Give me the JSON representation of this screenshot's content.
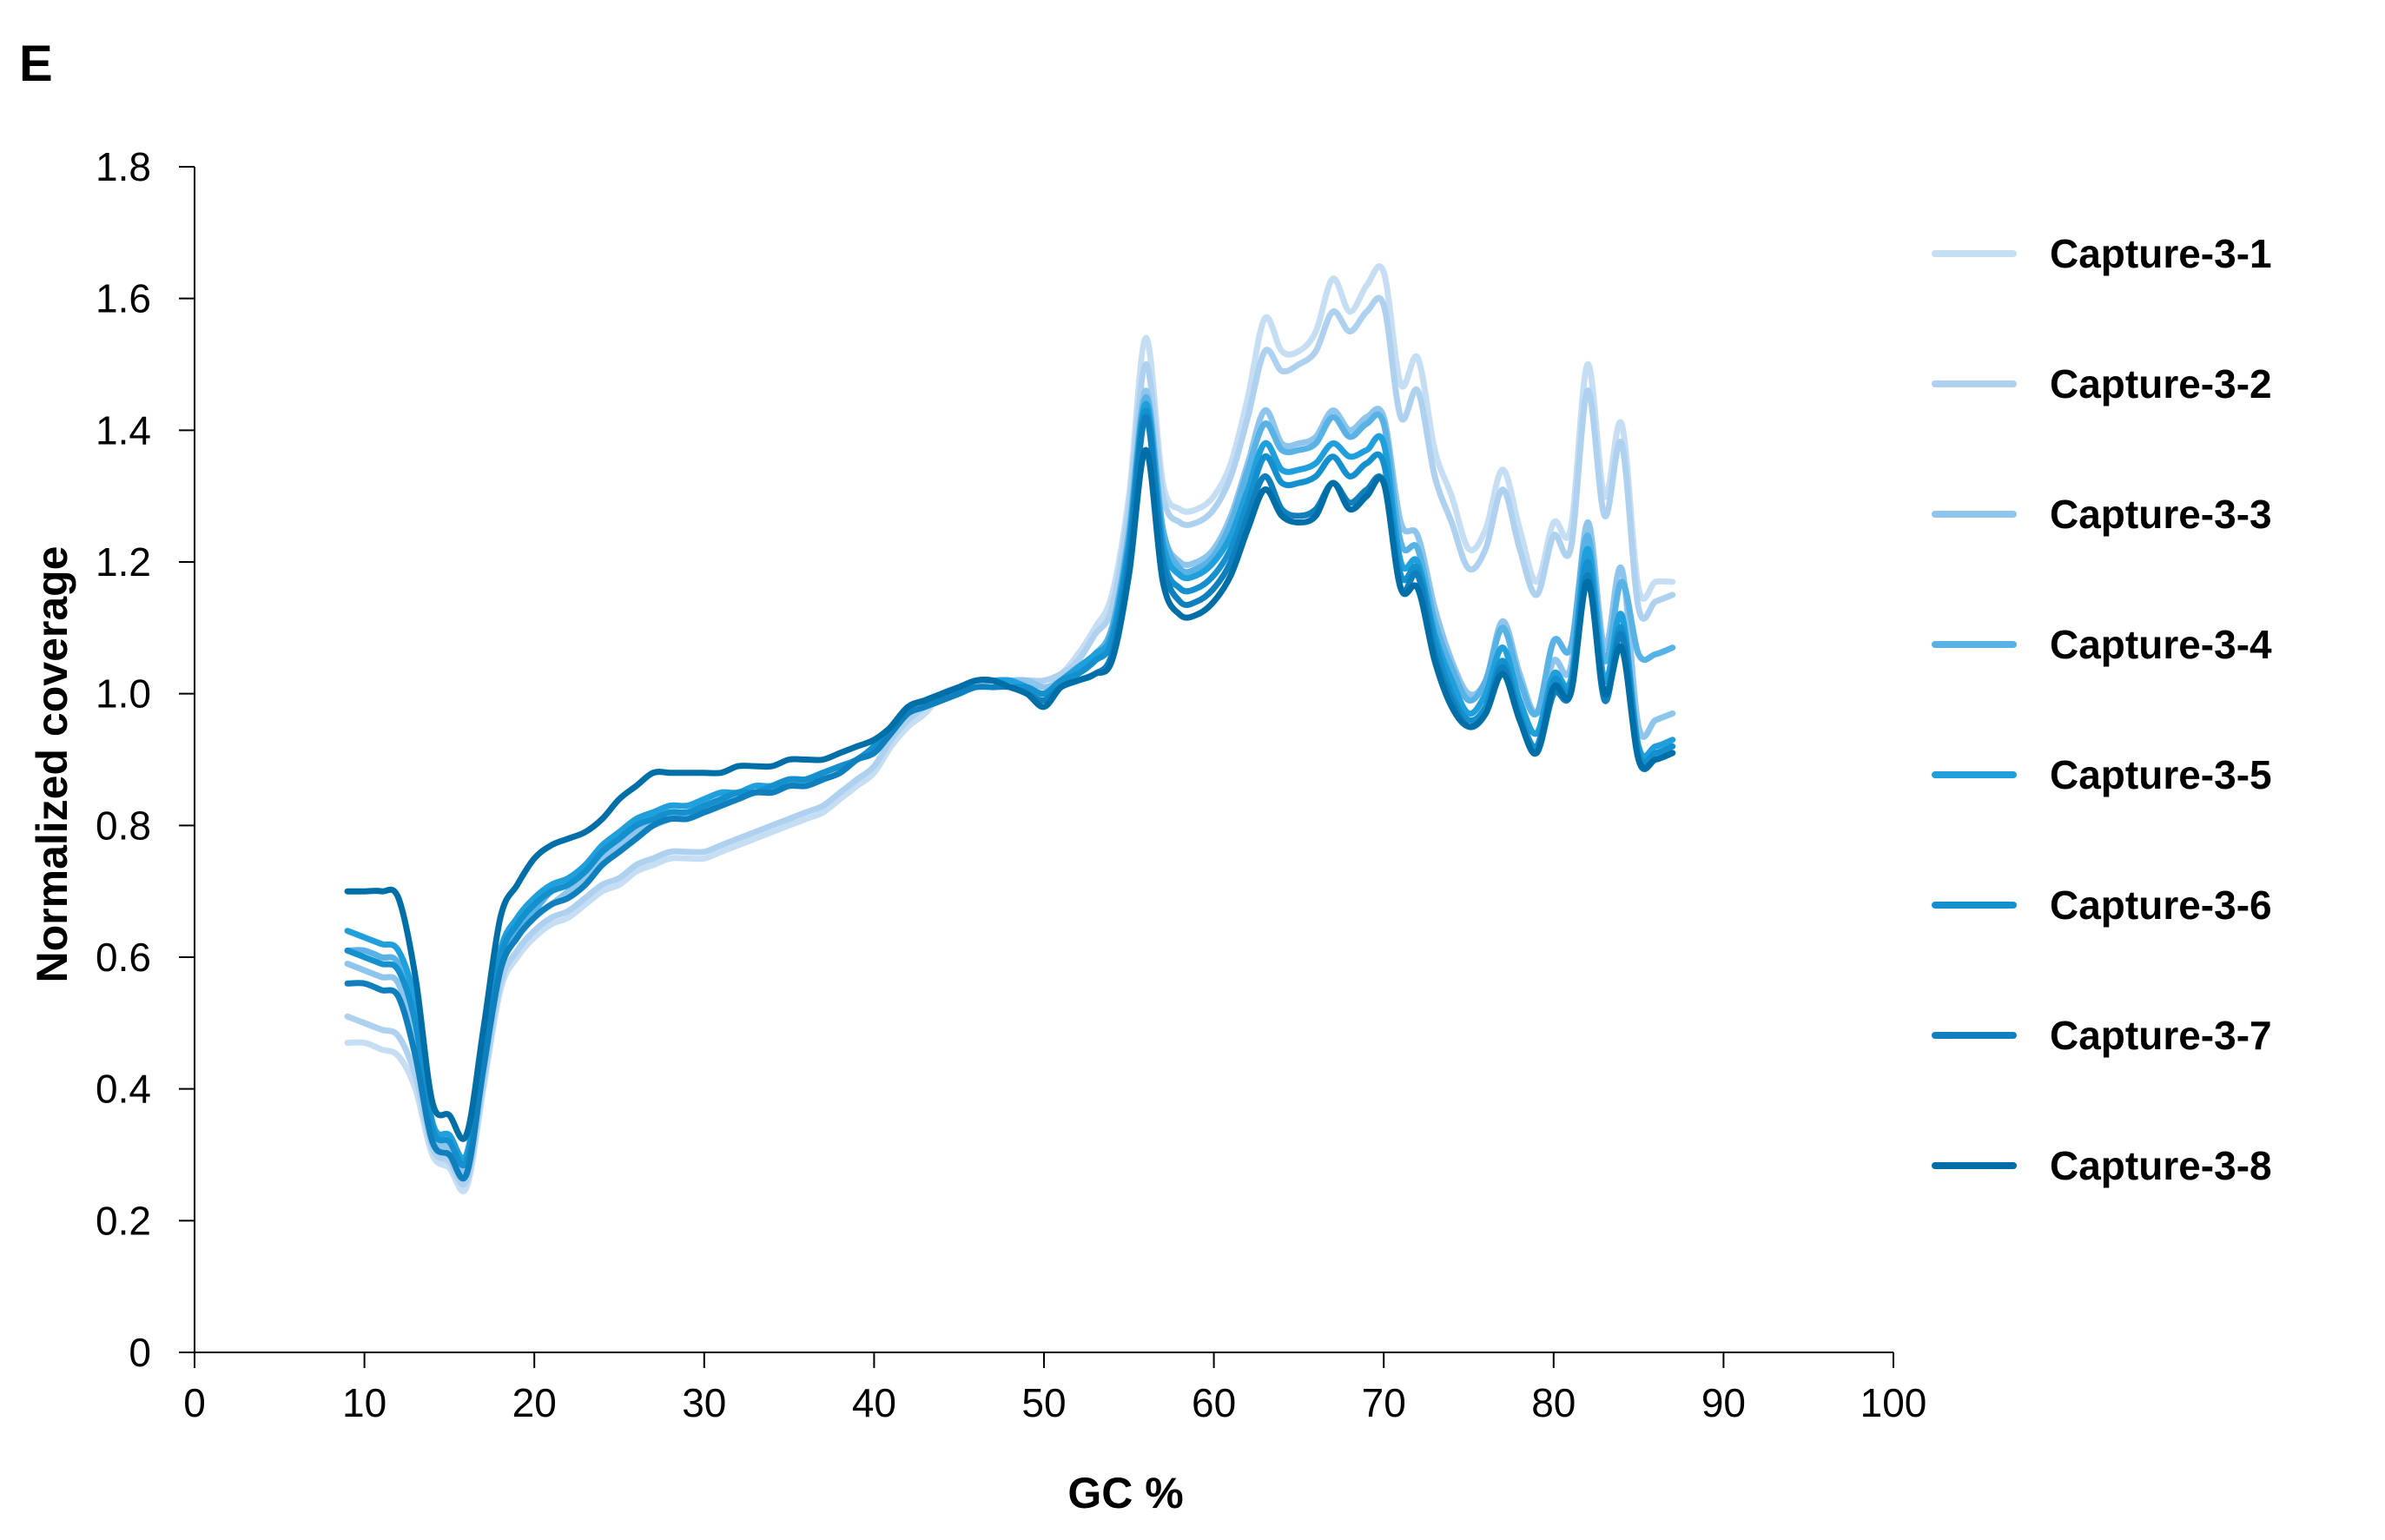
{
  "panel_label": "E",
  "chart_data": {
    "type": "line",
    "xlabel": "GC %",
    "ylabel": "Normalized coverage",
    "xlim": [
      0,
      100
    ],
    "ylim": [
      0,
      1.8
    ],
    "xticks": [
      0,
      10,
      20,
      30,
      40,
      50,
      60,
      70,
      80,
      90,
      100
    ],
    "yticks": [
      0,
      0.2,
      0.4,
      0.6,
      0.8,
      1.0,
      1.2,
      1.4,
      1.6,
      1.8
    ],
    "ytick_labels": [
      "0",
      "0.2",
      "0.4",
      "0.6",
      "0.8",
      "1.0",
      "1.2",
      "1.4",
      "1.6",
      "1.8"
    ],
    "legend_position": "right",
    "x": [
      9,
      10,
      11,
      12,
      13,
      14,
      15,
      16,
      17,
      18,
      19,
      20,
      21,
      22,
      23,
      24,
      25,
      26,
      27,
      28,
      29,
      30,
      31,
      32,
      33,
      34,
      35,
      36,
      37,
      38,
      39,
      40,
      41,
      42,
      43,
      44,
      45,
      46,
      47,
      48,
      49,
      50,
      51,
      52,
      53,
      54,
      55,
      56,
      57,
      58,
      59,
      60,
      61,
      62,
      63,
      64,
      65,
      66,
      67,
      68,
      69,
      70,
      71,
      72,
      73,
      74,
      75,
      76,
      77,
      78,
      79,
      80,
      81,
      82,
      83,
      84,
      85,
      86,
      87
    ],
    "series": [
      {
        "name": "Capture-3-1",
        "color": "#c6def4",
        "values": [
          0.47,
          0.47,
          0.46,
          0.45,
          0.4,
          0.3,
          0.28,
          0.25,
          0.4,
          0.55,
          0.6,
          0.63,
          0.65,
          0.66,
          0.68,
          0.7,
          0.71,
          0.73,
          0.74,
          0.75,
          0.75,
          0.75,
          0.76,
          0.77,
          0.78,
          0.79,
          0.8,
          0.81,
          0.82,
          0.84,
          0.86,
          0.88,
          0.92,
          0.95,
          0.97,
          1.0,
          1.01,
          1.02,
          1.02,
          1.02,
          1.02,
          1.02,
          1.03,
          1.06,
          1.1,
          1.15,
          1.3,
          1.54,
          1.32,
          1.28,
          1.28,
          1.3,
          1.35,
          1.45,
          1.57,
          1.52,
          1.52,
          1.55,
          1.63,
          1.58,
          1.62,
          1.64,
          1.47,
          1.51,
          1.37,
          1.3,
          1.22,
          1.25,
          1.34,
          1.25,
          1.17,
          1.26,
          1.25,
          1.5,
          1.3,
          1.41,
          1.16,
          1.17,
          1.17
        ]
      },
      {
        "name": "Capture-3-2",
        "color": "#aed1ef",
        "values": [
          0.51,
          0.5,
          0.49,
          0.48,
          0.42,
          0.31,
          0.29,
          0.26,
          0.41,
          0.56,
          0.61,
          0.64,
          0.66,
          0.67,
          0.69,
          0.71,
          0.72,
          0.74,
          0.75,
          0.76,
          0.76,
          0.76,
          0.77,
          0.78,
          0.79,
          0.8,
          0.81,
          0.82,
          0.83,
          0.85,
          0.87,
          0.89,
          0.93,
          0.96,
          0.98,
          1.0,
          1.01,
          1.02,
          1.02,
          1.02,
          1.02,
          1.02,
          1.03,
          1.05,
          1.09,
          1.13,
          1.28,
          1.5,
          1.3,
          1.26,
          1.26,
          1.28,
          1.33,
          1.42,
          1.52,
          1.49,
          1.5,
          1.52,
          1.58,
          1.55,
          1.58,
          1.59,
          1.42,
          1.46,
          1.33,
          1.26,
          1.19,
          1.22,
          1.31,
          1.22,
          1.15,
          1.24,
          1.22,
          1.46,
          1.27,
          1.38,
          1.13,
          1.14,
          1.15
        ]
      },
      {
        "name": "Capture-3-3",
        "color": "#8ec5ec",
        "values": [
          0.59,
          0.58,
          0.57,
          0.56,
          0.47,
          0.33,
          0.31,
          0.28,
          0.43,
          0.58,
          0.63,
          0.66,
          0.68,
          0.7,
          0.72,
          0.75,
          0.77,
          0.79,
          0.8,
          0.81,
          0.82,
          0.82,
          0.83,
          0.84,
          0.85,
          0.85,
          0.86,
          0.86,
          0.87,
          0.88,
          0.9,
          0.92,
          0.95,
          0.98,
          0.99,
          1.0,
          1.01,
          1.02,
          1.02,
          1.02,
          1.02,
          1.01,
          1.02,
          1.04,
          1.06,
          1.1,
          1.25,
          1.46,
          1.25,
          1.2,
          1.2,
          1.22,
          1.27,
          1.35,
          1.43,
          1.38,
          1.38,
          1.39,
          1.43,
          1.4,
          1.42,
          1.42,
          1.26,
          1.24,
          1.13,
          1.05,
          1.0,
          1.02,
          1.11,
          1.03,
          0.97,
          1.05,
          1.04,
          1.26,
          1.07,
          1.19,
          0.95,
          0.96,
          0.97
        ]
      },
      {
        "name": "Capture-3-4",
        "color": "#58b2e6",
        "values": [
          0.61,
          0.61,
          0.6,
          0.59,
          0.5,
          0.34,
          0.32,
          0.29,
          0.44,
          0.59,
          0.64,
          0.67,
          0.7,
          0.71,
          0.73,
          0.76,
          0.78,
          0.8,
          0.81,
          0.82,
          0.82,
          0.83,
          0.84,
          0.85,
          0.85,
          0.86,
          0.86,
          0.87,
          0.88,
          0.89,
          0.9,
          0.92,
          0.95,
          0.98,
          0.99,
          1.0,
          1.01,
          1.02,
          1.02,
          1.02,
          1.01,
          1.0,
          1.02,
          1.04,
          1.06,
          1.1,
          1.24,
          1.45,
          1.25,
          1.19,
          1.19,
          1.21,
          1.26,
          1.34,
          1.41,
          1.37,
          1.37,
          1.38,
          1.42,
          1.39,
          1.41,
          1.41,
          1.23,
          1.22,
          1.11,
          1.04,
          0.99,
          1.02,
          1.1,
          1.02,
          0.97,
          1.08,
          1.07,
          1.24,
          1.05,
          1.17,
          1.06,
          1.06,
          1.07
        ]
      },
      {
        "name": "Capture-3-5",
        "color": "#1f9fdc",
        "values": [
          0.64,
          0.63,
          0.62,
          0.61,
          0.53,
          0.35,
          0.33,
          0.3,
          0.46,
          0.61,
          0.66,
          0.69,
          0.71,
          0.72,
          0.74,
          0.77,
          0.79,
          0.81,
          0.82,
          0.83,
          0.83,
          0.84,
          0.85,
          0.85,
          0.86,
          0.86,
          0.87,
          0.87,
          0.88,
          0.89,
          0.9,
          0.92,
          0.95,
          0.98,
          0.99,
          1.0,
          1.01,
          1.02,
          1.02,
          1.02,
          1.01,
          1.0,
          1.02,
          1.04,
          1.06,
          1.09,
          1.23,
          1.44,
          1.23,
          1.18,
          1.18,
          1.2,
          1.24,
          1.31,
          1.38,
          1.34,
          1.34,
          1.35,
          1.38,
          1.36,
          1.37,
          1.38,
          1.2,
          1.2,
          1.09,
          1.02,
          0.97,
          1.0,
          1.07,
          0.99,
          0.94,
          1.03,
          1.02,
          1.22,
          1.02,
          1.12,
          0.92,
          0.92,
          0.93
        ]
      },
      {
        "name": "Capture-3-6",
        "color": "#1590cf",
        "values": [
          0.61,
          0.6,
          0.59,
          0.58,
          0.5,
          0.34,
          0.32,
          0.29,
          0.45,
          0.6,
          0.65,
          0.68,
          0.7,
          0.71,
          0.73,
          0.76,
          0.78,
          0.8,
          0.81,
          0.82,
          0.82,
          0.83,
          0.84,
          0.85,
          0.85,
          0.86,
          0.87,
          0.87,
          0.88,
          0.89,
          0.9,
          0.92,
          0.95,
          0.98,
          0.99,
          1.0,
          1.01,
          1.02,
          1.02,
          1.01,
          1.01,
          1.0,
          1.02,
          1.03,
          1.05,
          1.08,
          1.22,
          1.43,
          1.21,
          1.16,
          1.16,
          1.18,
          1.22,
          1.29,
          1.36,
          1.32,
          1.32,
          1.33,
          1.36,
          1.33,
          1.35,
          1.35,
          1.18,
          1.19,
          1.08,
          1.0,
          0.96,
          0.98,
          1.05,
          0.97,
          0.92,
          1.02,
          1.01,
          1.2,
          1.0,
          1.1,
          0.91,
          0.91,
          0.92
        ]
      },
      {
        "name": "Capture-3-7",
        "color": "#0f7fbe",
        "values": [
          0.56,
          0.56,
          0.55,
          0.54,
          0.45,
          0.32,
          0.3,
          0.27,
          0.43,
          0.58,
          0.63,
          0.66,
          0.68,
          0.69,
          0.71,
          0.74,
          0.76,
          0.78,
          0.8,
          0.81,
          0.81,
          0.82,
          0.83,
          0.84,
          0.85,
          0.85,
          0.86,
          0.86,
          0.87,
          0.88,
          0.9,
          0.91,
          0.94,
          0.97,
          0.98,
          0.99,
          1.0,
          1.01,
          1.01,
          1.01,
          1.0,
          0.99,
          1.01,
          1.02,
          1.03,
          1.06,
          1.2,
          1.42,
          1.2,
          1.14,
          1.14,
          1.16,
          1.2,
          1.27,
          1.33,
          1.28,
          1.27,
          1.28,
          1.32,
          1.29,
          1.31,
          1.32,
          1.16,
          1.18,
          1.06,
          0.99,
          0.95,
          0.97,
          1.04,
          0.96,
          0.91,
          1.0,
          1.0,
          1.18,
          0.99,
          1.09,
          0.9,
          0.9,
          0.91
        ]
      },
      {
        "name": "Capture-3-8",
        "color": "#006fa8",
        "values": [
          0.7,
          0.7,
          0.7,
          0.69,
          0.57,
          0.38,
          0.36,
          0.33,
          0.49,
          0.66,
          0.71,
          0.75,
          0.77,
          0.78,
          0.79,
          0.81,
          0.84,
          0.86,
          0.88,
          0.88,
          0.88,
          0.88,
          0.88,
          0.89,
          0.89,
          0.89,
          0.9,
          0.9,
          0.9,
          0.91,
          0.92,
          0.93,
          0.95,
          0.98,
          0.99,
          1.0,
          1.01,
          1.02,
          1.02,
          1.01,
          1.0,
          0.98,
          1.01,
          1.02,
          1.03,
          1.05,
          1.18,
          1.37,
          1.17,
          1.12,
          1.12,
          1.14,
          1.18,
          1.25,
          1.31,
          1.27,
          1.26,
          1.27,
          1.32,
          1.28,
          1.3,
          1.32,
          1.16,
          1.16,
          1.05,
          0.98,
          0.95,
          0.97,
          1.03,
          0.96,
          0.91,
          1.01,
          1.0,
          1.17,
          1.0,
          1.07,
          0.9,
          0.9,
          0.91
        ]
      }
    ]
  }
}
